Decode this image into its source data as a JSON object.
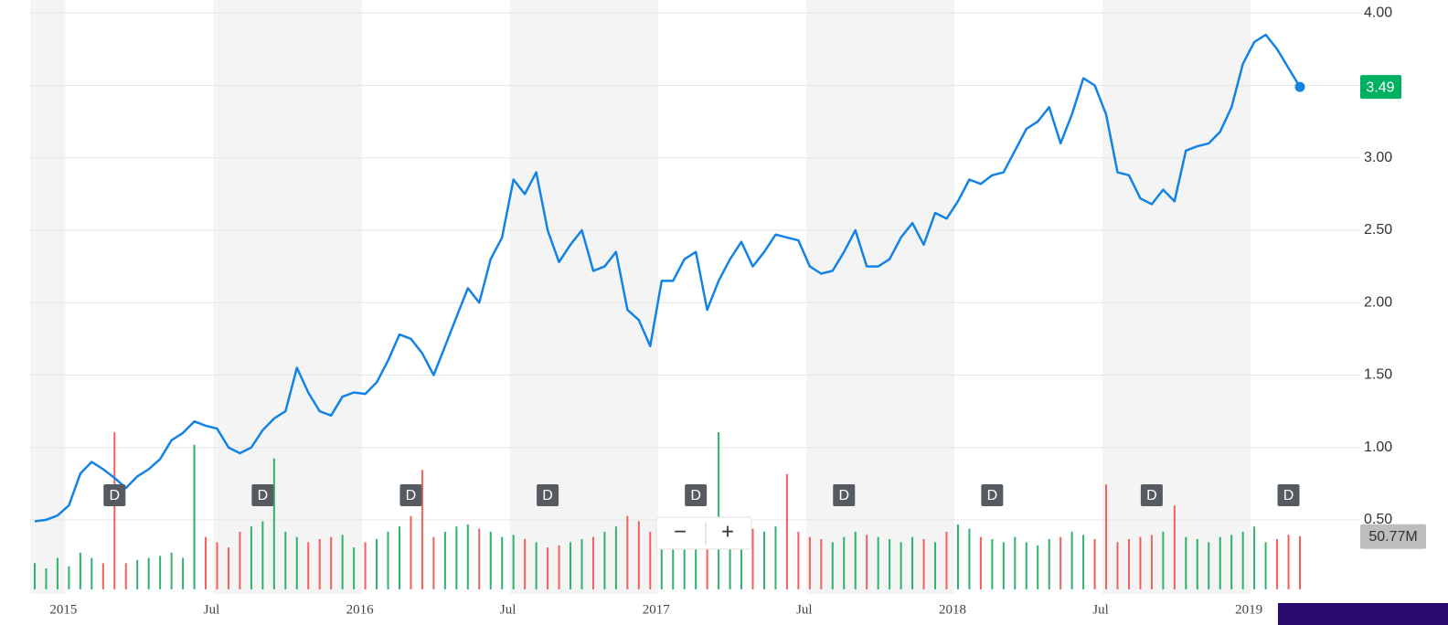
{
  "chart_data": {
    "type": "line",
    "color": "#1283e6",
    "categories": [
      null,
      null,
      null,
      "2015",
      null,
      null,
      null,
      null,
      null,
      null,
      null,
      null,
      null,
      null,
      null,
      null,
      "Jul",
      null,
      null,
      null,
      null,
      null,
      null,
      null,
      null,
      null,
      null,
      null,
      null,
      "2016",
      null,
      null,
      null,
      null,
      null,
      null,
      null,
      null,
      null,
      null,
      null,
      null,
      "Jul",
      null,
      null,
      null,
      null,
      null,
      null,
      null,
      null,
      null,
      null,
      null,
      null,
      "2017",
      null,
      null,
      null,
      null,
      null,
      null,
      null,
      null,
      null,
      null,
      null,
      null,
      "Jul",
      null,
      null,
      null,
      null,
      null,
      null,
      null,
      null,
      null,
      null,
      null,
      null,
      "2018",
      null,
      null,
      null,
      null,
      null,
      null,
      null,
      null,
      null,
      null,
      null,
      null,
      "Jul",
      null,
      null,
      null,
      null,
      null,
      null,
      null,
      null,
      null,
      null,
      null,
      null,
      "2019",
      null,
      null,
      null,
      null
    ],
    "values": [
      0.49,
      0.5,
      0.53,
      0.6,
      0.82,
      0.9,
      0.85,
      0.79,
      0.72,
      0.8,
      0.85,
      0.92,
      1.05,
      1.1,
      1.18,
      1.15,
      1.13,
      1.0,
      0.96,
      1.0,
      1.12,
      1.2,
      1.25,
      1.55,
      1.38,
      1.25,
      1.22,
      1.35,
      1.38,
      1.37,
      1.45,
      1.6,
      1.78,
      1.75,
      1.65,
      1.5,
      1.7,
      1.9,
      2.1,
      2.0,
      2.3,
      2.45,
      2.85,
      2.75,
      2.9,
      2.5,
      2.28,
      2.4,
      2.5,
      2.22,
      2.25,
      2.35,
      1.95,
      1.88,
      1.7,
      2.15,
      2.15,
      2.3,
      2.35,
      1.95,
      2.15,
      2.3,
      2.42,
      2.25,
      2.35,
      2.47,
      2.45,
      2.43,
      2.25,
      2.2,
      2.22,
      2.35,
      2.5,
      2.25,
      2.25,
      2.3,
      2.45,
      2.55,
      2.4,
      2.62,
      2.58,
      2.7,
      2.85,
      2.82,
      2.88,
      2.9,
      3.05,
      3.2,
      3.25,
      3.35,
      3.1,
      3.3,
      3.55,
      3.5,
      3.3,
      2.9,
      2.88,
      2.72,
      2.68,
      2.78,
      2.7,
      3.05,
      3.08,
      3.1,
      3.18,
      3.35,
      3.65,
      3.8,
      3.85,
      3.75,
      3.62,
      3.49
    ],
    "ylim": [
      0.02,
      4.09
    ],
    "yticks": [
      {
        "value": 0.5,
        "label": "0.50"
      },
      {
        "value": 1,
        "label": "1.00"
      },
      {
        "value": 1.5,
        "label": "1.50"
      },
      {
        "value": 2,
        "label": "2.00"
      },
      {
        "value": 2.5,
        "label": "2.50"
      },
      {
        "value": 3,
        "label": "3.00"
      },
      {
        "value": 3.5,
        "label": "3.50"
      },
      {
        "value": 4,
        "label": "4.00"
      }
    ],
    "grid": true,
    "price_marker": 3.49,
    "price_marker_color": "#00b061",
    "volume": {
      "up_color": "#2db36a",
      "down_color": "#f0605d",
      "values": [
        25,
        20,
        30,
        22,
        35,
        30,
        25,
        150,
        25,
        28,
        30,
        32,
        35,
        30,
        138,
        50,
        45,
        40,
        55,
        60,
        65,
        125,
        55,
        50,
        45,
        48,
        50,
        52,
        40,
        45,
        48,
        55,
        60,
        70,
        114,
        50,
        55,
        60,
        62,
        58,
        55,
        50,
        52,
        48,
        45,
        40,
        42,
        45,
        48,
        50,
        55,
        60,
        70,
        65,
        55,
        50,
        45,
        48,
        52,
        55,
        150,
        60,
        62,
        58,
        55,
        60,
        110,
        55,
        50,
        48,
        45,
        50,
        55,
        52,
        50,
        48,
        45,
        50,
        48,
        45,
        55,
        62,
        58,
        50,
        48,
        45,
        50,
        45,
        42,
        48,
        50,
        55,
        52,
        48,
        100,
        45,
        48,
        50,
        52,
        55,
        80,
        50,
        48,
        45,
        50,
        52,
        55,
        60,
        45,
        48,
        52,
        50.77
      ],
      "marker": {
        "value": 50.77,
        "label": "50.77M"
      }
    },
    "dividend_label": "D",
    "dividend_at": [
      7,
      20,
      33,
      45,
      58,
      71,
      84,
      98,
      110
    ],
    "zoom_controls": [
      "−",
      "+"
    ]
  }
}
